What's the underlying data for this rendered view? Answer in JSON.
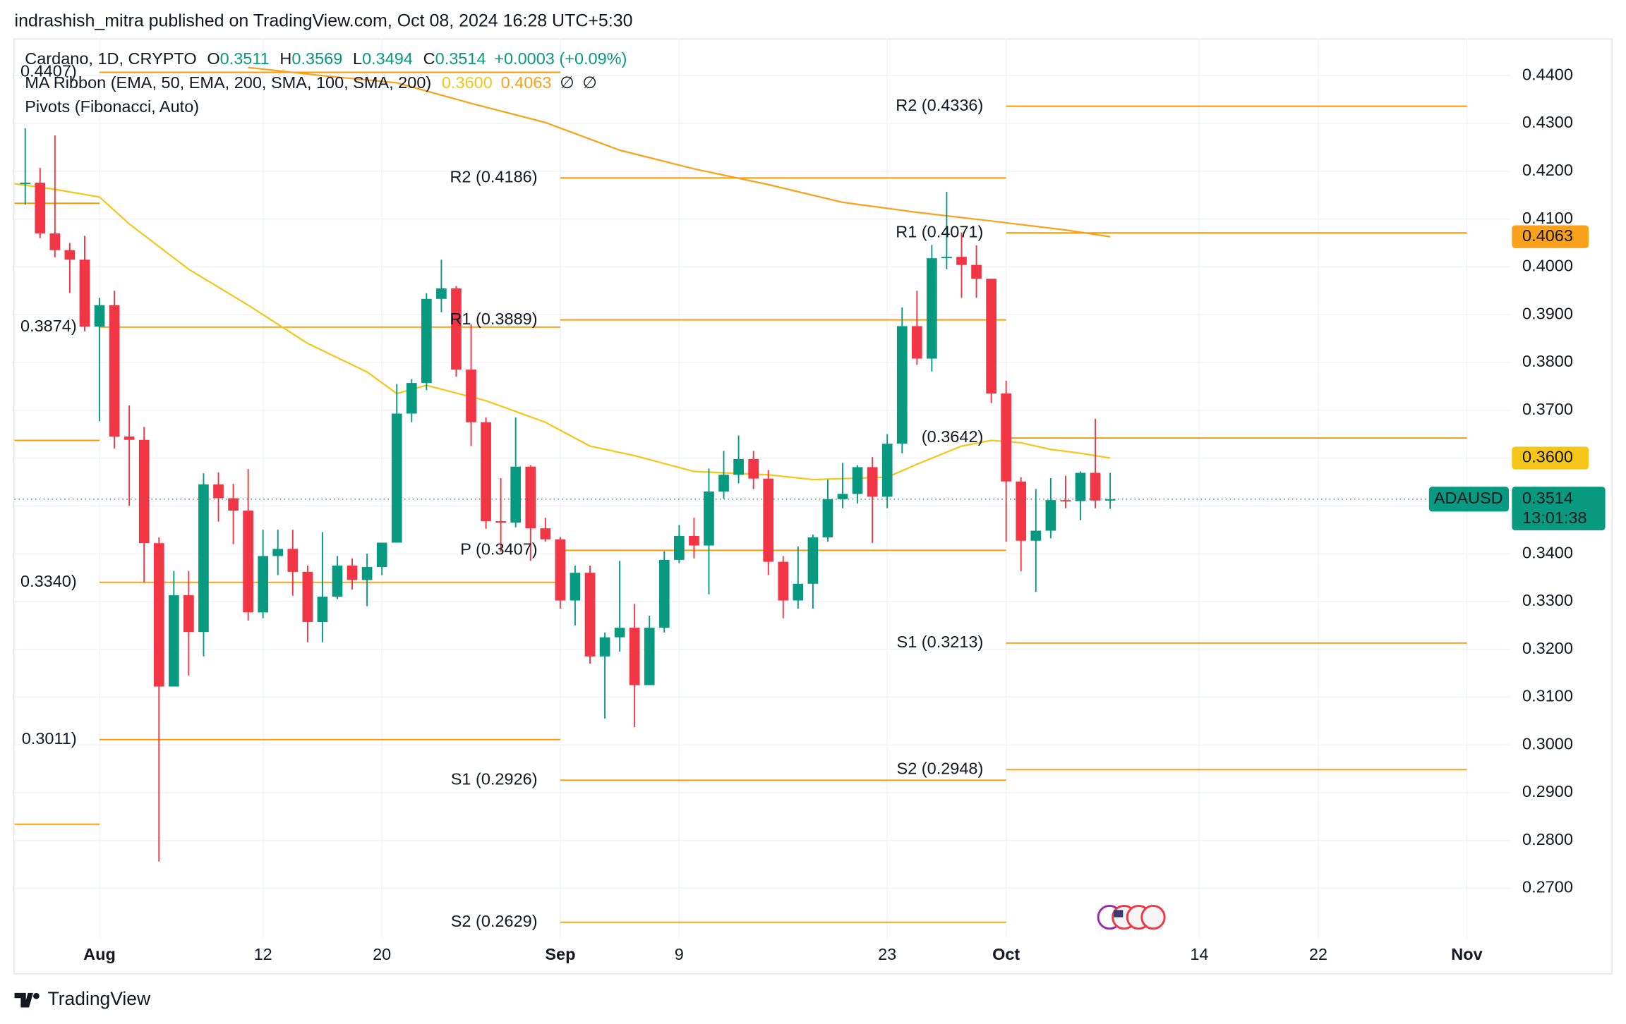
{
  "header": {
    "text": "indrashish_mitra published on TradingView.com, Oct 08, 2024 16:28 UTC+5:30"
  },
  "footer": {
    "brand": "TradingView"
  },
  "chart_data": {
    "type": "candlestick",
    "legend": {
      "symbol": "Cardano, 1D, CRYPTO",
      "ohlc": [
        {
          "key": "O",
          "value": "0.3511"
        },
        {
          "key": "H",
          "value": "0.3569"
        },
        {
          "key": "L",
          "value": "0.3494"
        },
        {
          "key": "C",
          "value": "0.3514"
        }
      ],
      "change": "+0.0003 (+0.09%)"
    },
    "up_color": "#089981",
    "down_color": "#f23645",
    "x": [
      -5,
      -4,
      -3,
      -2,
      -1,
      0,
      1,
      2,
      3,
      4,
      5,
      6,
      7,
      8,
      9,
      10,
      11,
      12,
      13,
      14,
      15,
      16,
      17,
      18,
      19,
      20,
      21,
      22,
      23,
      24,
      25,
      26,
      27,
      28,
      29,
      30,
      31,
      32,
      33,
      34,
      35,
      36,
      37,
      38,
      39,
      40,
      41,
      42,
      43,
      44,
      45,
      46,
      47,
      48,
      49,
      50,
      51,
      52,
      53,
      54,
      55,
      56,
      57,
      58,
      59,
      60,
      61,
      62,
      63,
      64,
      65,
      66,
      67,
      68
    ],
    "open": [
      0.4173,
      0.4176,
      0.407,
      0.4035,
      0.4015,
      0.3875,
      0.392,
      0.3645,
      0.3638,
      0.3422,
      0.3122,
      0.3313,
      0.3236,
      0.3545,
      0.3516,
      0.349,
      0.3277,
      0.3395,
      0.341,
      0.3362,
      0.3257,
      0.331,
      0.3375,
      0.3345,
      0.3372,
      0.3423,
      0.3693,
      0.3757,
      0.3933,
      0.3955,
      0.3785,
      0.3675,
      0.3468,
      0.3465,
      0.3582,
      0.3453,
      0.343,
      0.3302,
      0.336,
      0.3185,
      0.3225,
      0.3245,
      0.3125,
      0.3245,
      0.3387,
      0.3437,
      0.3417,
      0.353,
      0.3565,
      0.3598,
      0.3557,
      0.3383,
      0.3302,
      0.3337,
      0.3434,
      0.3514,
      0.3525,
      0.3581,
      0.3519,
      0.363,
      0.3876,
      0.3808,
      0.4018,
      0.4021,
      0.4004,
      0.3975,
      0.3735,
      0.3551,
      0.3427,
      0.3448,
      0.3512,
      0.351,
      0.3569,
      0.3511
    ],
    "high": [
      0.429,
      0.4207,
      0.4275,
      0.405,
      0.4065,
      0.3935,
      0.395,
      0.371,
      0.3665,
      0.3434,
      0.3364,
      0.3364,
      0.3568,
      0.357,
      0.3546,
      0.3577,
      0.345,
      0.345,
      0.345,
      0.3375,
      0.3445,
      0.3395,
      0.339,
      0.34,
      0.342,
      0.3755,
      0.3765,
      0.3945,
      0.4015,
      0.396,
      0.388,
      0.3685,
      0.3558,
      0.3685,
      0.3585,
      0.3475,
      0.3435,
      0.3375,
      0.3375,
      0.3235,
      0.3385,
      0.3295,
      0.327,
      0.3405,
      0.346,
      0.3475,
      0.3578,
      0.3615,
      0.3647,
      0.3615,
      0.3575,
      0.3395,
      0.3415,
      0.344,
      0.3555,
      0.359,
      0.3585,
      0.3602,
      0.365,
      0.3915,
      0.395,
      0.4046,
      0.4157,
      0.4072,
      0.4045,
      0.3975,
      0.3762,
      0.356,
      0.3535,
      0.3558,
      0.3563,
      0.3572,
      0.3682,
      0.3569
    ],
    "low": [
      0.413,
      0.406,
      0.402,
      0.3945,
      0.3865,
      0.3677,
      0.362,
      0.35,
      0.334,
      0.2756,
      0.3122,
      0.3145,
      0.3185,
      0.3467,
      0.342,
      0.326,
      0.3265,
      0.3355,
      0.3312,
      0.3215,
      0.3215,
      0.3305,
      0.3325,
      0.329,
      0.3355,
      0.3423,
      0.3675,
      0.3742,
      0.3905,
      0.377,
      0.3625,
      0.3452,
      0.3404,
      0.3455,
      0.3385,
      0.3425,
      0.3285,
      0.325,
      0.317,
      0.3055,
      0.3195,
      0.3037,
      0.3125,
      0.3235,
      0.338,
      0.339,
      0.3315,
      0.3515,
      0.3547,
      0.3535,
      0.3355,
      0.3265,
      0.3285,
      0.3285,
      0.3425,
      0.3495,
      0.3505,
      0.3422,
      0.3495,
      0.361,
      0.3795,
      0.3781,
      0.3995,
      0.3935,
      0.3935,
      0.3715,
      0.3425,
      0.3363,
      0.332,
      0.3432,
      0.3495,
      0.347,
      0.3495,
      0.3494
    ],
    "close": [
      0.4176,
      0.407,
      0.4035,
      0.4015,
      0.3875,
      0.392,
      0.3645,
      0.3638,
      0.3422,
      0.3122,
      0.3313,
      0.3236,
      0.3545,
      0.3516,
      0.349,
      0.3277,
      0.3395,
      0.341,
      0.3362,
      0.3257,
      0.331,
      0.3375,
      0.3345,
      0.3372,
      0.3423,
      0.3693,
      0.3757,
      0.3933,
      0.3955,
      0.3785,
      0.3675,
      0.3468,
      0.3465,
      0.3582,
      0.3453,
      0.343,
      0.3302,
      0.336,
      0.3185,
      0.3225,
      0.3245,
      0.3125,
      0.3245,
      0.3387,
      0.3437,
      0.3417,
      0.353,
      0.3565,
      0.3598,
      0.3557,
      0.3383,
      0.3302,
      0.3337,
      0.3434,
      0.3514,
      0.3525,
      0.3581,
      0.3519,
      0.363,
      0.3876,
      0.3808,
      0.4018,
      0.4021,
      0.4004,
      0.3975,
      0.3735,
      0.3551,
      0.3427,
      0.3448,
      0.3512,
      0.351,
      0.3569,
      0.3511,
      0.3514
    ],
    "ma_ribbon": {
      "label": "MA Ribbon (EMA, 50, EMA, 200, SMA, 100, SMA, 200)",
      "na": [
        "∅",
        "∅"
      ],
      "series": [
        {
          "color": "#f5c518",
          "x": [
            -6,
            -3,
            0,
            2,
            6,
            10,
            14,
            18,
            20,
            22,
            26,
            30,
            33,
            36,
            40,
            45,
            48,
            50,
            53,
            55,
            58,
            60,
            62,
            64,
            66,
            68
          ],
          "values": [
            0.4175,
            0.4162,
            0.4146,
            0.409,
            0.3995,
            0.392,
            0.384,
            0.378,
            0.3735,
            0.3752,
            0.372,
            0.3675,
            0.3625,
            0.3605,
            0.3572,
            0.3565,
            0.3555,
            0.3557,
            0.356,
            0.3587,
            0.3625,
            0.3637,
            0.3632,
            0.3618,
            0.361,
            0.36
          ],
          "last_label": "0.3600"
        },
        {
          "color": "#f9a11b",
          "x": [
            10,
            15,
            20,
            25,
            30,
            35,
            40,
            45,
            50,
            55,
            60,
            65,
            68
          ],
          "values": [
            0.4417,
            0.44,
            0.4385,
            0.4342,
            0.4302,
            0.4244,
            0.4205,
            0.4172,
            0.4135,
            0.4114,
            0.4096,
            0.4077,
            0.4063
          ],
          "last_label": "0.4063"
        }
      ]
    },
    "pivots_title": "Pivots (Fibonacci, Auto)",
    "pivot_color": "#ff9800",
    "pivots": [
      {
        "start": -6,
        "end": 0,
        "levels": [
          {
            "value": 0.4133
          },
          {
            "value": 0.3637
          },
          {
            "value": 0.2834
          }
        ]
      },
      {
        "start": 0,
        "end": 31,
        "levels": [
          {
            "value": 0.4407,
            "label": "0.4407)"
          },
          {
            "value": 0.3874,
            "label": "0.3874)"
          },
          {
            "value": 0.334,
            "label": "0.3340)"
          },
          {
            "value": 0.3011,
            "label": "0.3011)"
          }
        ]
      },
      {
        "start": 31,
        "end": 61,
        "levels": [
          {
            "value": 0.4186,
            "label": "R2 (0.4186)"
          },
          {
            "value": 0.3889,
            "label": "R1 (0.3889)"
          },
          {
            "value": 0.3407,
            "label": "P (0.3407)"
          },
          {
            "value": 0.2926,
            "label": "S1 (0.2926)"
          },
          {
            "value": 0.2629,
            "label": "S2 (0.2629)"
          }
        ]
      },
      {
        "start": 61,
        "end": 92,
        "levels": [
          {
            "value": 0.4336,
            "label": "R2 (0.4336)"
          },
          {
            "value": 0.4071,
            "label": "R1 (0.4071)"
          },
          {
            "value": 0.3642,
            "label": "(0.3642)"
          },
          {
            "value": 0.3213,
            "label": "S1 (0.3213)"
          },
          {
            "value": 0.2948,
            "label": "S2 (0.2948)"
          }
        ]
      }
    ],
    "last": {
      "symbol": "ADAUSD",
      "value": 0.3514,
      "label": "0.3514",
      "countdown": "13:01:38"
    },
    "xlim": [
      -5.72,
      101.8
    ],
    "ylim": [
      0.2596,
      0.4478
    ],
    "xticks": [
      {
        "value": 0,
        "label": "Aug"
      },
      {
        "value": 11,
        "label": "12"
      },
      {
        "value": 19,
        "label": "20"
      },
      {
        "value": 31,
        "label": "Sep"
      },
      {
        "value": 39,
        "label": "9"
      },
      {
        "value": 53,
        "label": "23"
      },
      {
        "value": 61,
        "label": "Oct"
      },
      {
        "value": 74,
        "label": "14"
      },
      {
        "value": 82,
        "label": "22"
      },
      {
        "value": 92,
        "label": "Nov"
      }
    ],
    "yticks": [
      {
        "value": 0.27,
        "label": "0.2700"
      },
      {
        "value": 0.28,
        "label": "0.2800"
      },
      {
        "value": 0.29,
        "label": "0.2900"
      },
      {
        "value": 0.3,
        "label": "0.3000"
      },
      {
        "value": 0.31,
        "label": "0.3100"
      },
      {
        "value": 0.32,
        "label": "0.3200"
      },
      {
        "value": 0.33,
        "label": "0.3300"
      },
      {
        "value": 0.34,
        "label": "0.3400"
      },
      {
        "value": 0.35,
        "label": "0.3500"
      },
      {
        "value": 0.36,
        "label": "0.3600"
      },
      {
        "value": 0.37,
        "label": "0.3700"
      },
      {
        "value": 0.38,
        "label": "0.3800"
      },
      {
        "value": 0.39,
        "label": "0.3900"
      },
      {
        "value": 0.4,
        "label": "0.4000"
      },
      {
        "value": 0.41,
        "label": "0.4100"
      },
      {
        "value": 0.42,
        "label": "0.4200"
      },
      {
        "value": 0.43,
        "label": "0.4300"
      },
      {
        "value": 0.44,
        "label": "0.4400"
      }
    ],
    "grid": true
  }
}
